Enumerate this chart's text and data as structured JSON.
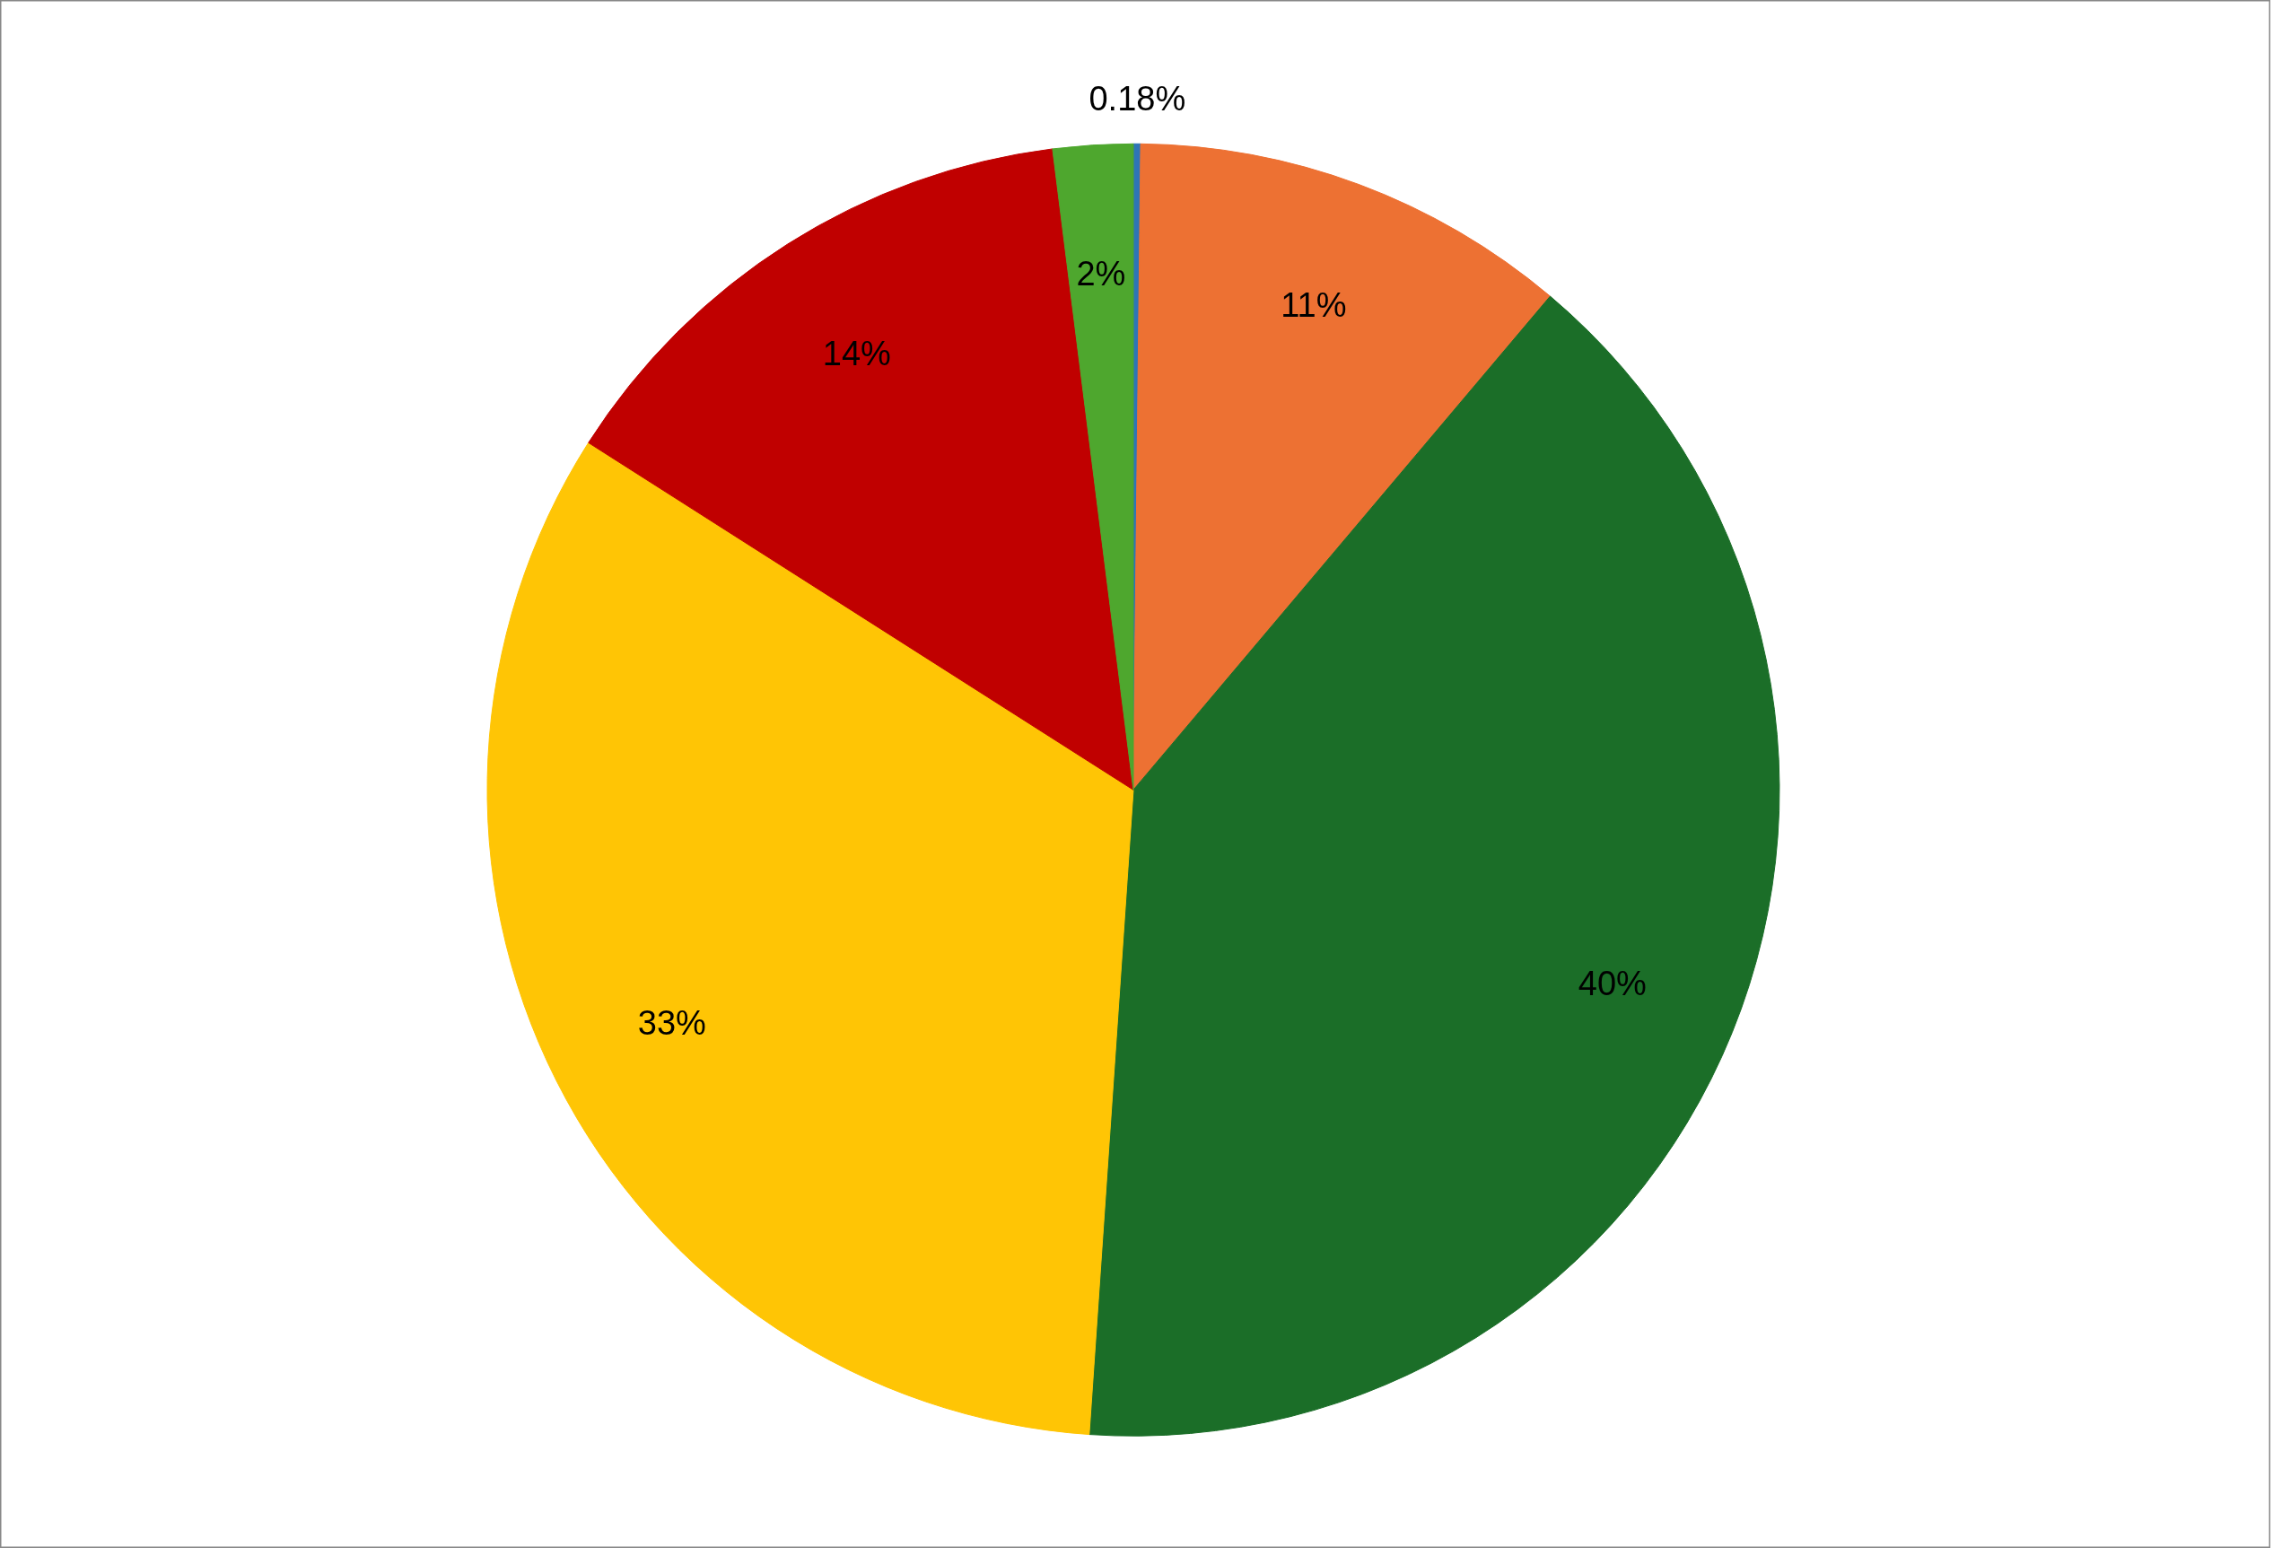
{
  "chart_data": {
    "type": "pie",
    "categories": [
      null,
      null,
      null,
      null,
      null,
      null
    ],
    "values": [
      0.18,
      11,
      40,
      33,
      14,
      2
    ],
    "colors": [
      "#2e75b6",
      "#ed7133",
      "#1b6e28",
      "#ffc505",
      "#c00000",
      "#4ea72e"
    ],
    "value_labels": [
      "0.18%",
      "11%",
      "40%",
      "33%",
      "14%",
      "2%"
    ]
  }
}
